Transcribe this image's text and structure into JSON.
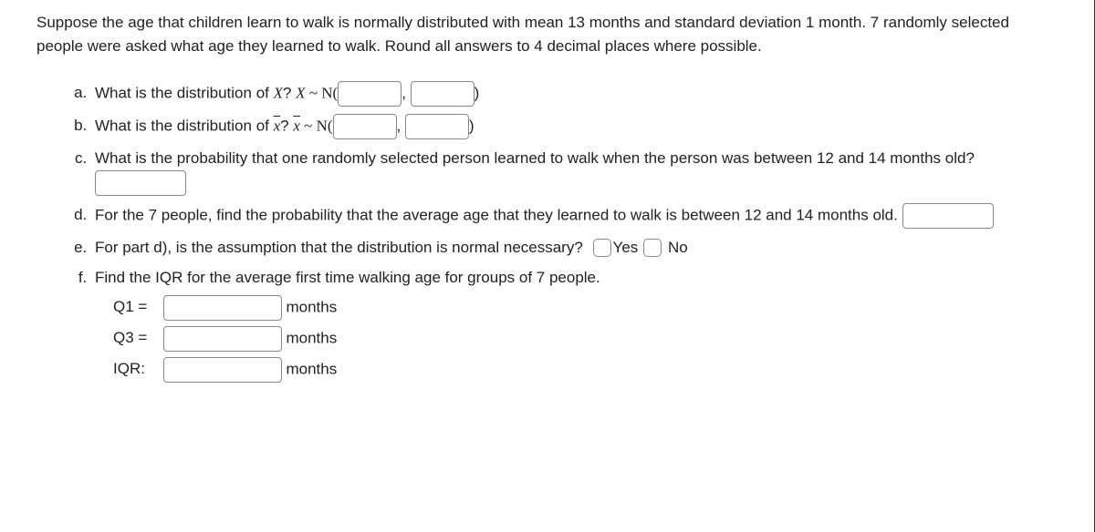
{
  "intro": "Suppose the age that children learn to walk is normally distributed with mean 13 months and standard deviation 1 month. 7 randomly selected people were asked what age they learned to walk. Round all answers to 4 decimal places where possible.",
  "q": {
    "a_pre": "What is the distribution of ",
    "a_var": "X",
    "a_mid": "? ",
    "a_var2": "X",
    "a_tilde": " ~ N(",
    "b_pre": "What is the distribution of ",
    "b_var": "x̄",
    "b_mid": "? ",
    "b_var2": "x̄",
    "b_tilde": " ~ N(",
    "c": "What is the probability that one randomly selected person learned to walk when the person was between 12 and 14 months old?",
    "d": "For the 7 people, find the probability that the average age that they learned to walk is between 12 and 14 months old.",
    "e": "For part d), is the assumption that the distribution is normal necessary?",
    "e_yes": "Yes",
    "e_no": "No",
    "f": "Find the IQR for the average first time walking age for groups of 7 people.",
    "q1": "Q1 =",
    "q3": "Q3 =",
    "iqr": "IQR:",
    "unit": "months",
    "comma": ",",
    "close": ")"
  }
}
